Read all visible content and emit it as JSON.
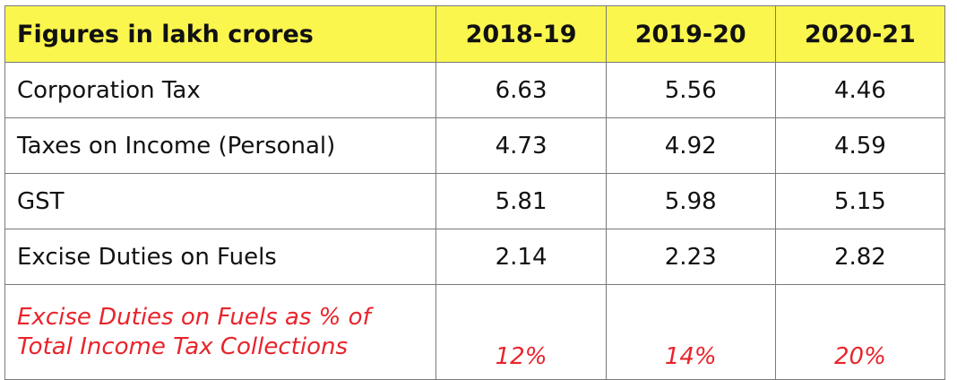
{
  "table": {
    "header": {
      "label": "Figures in lakh crores",
      "years": [
        "2018-19",
        "2019-20",
        "2020-21"
      ]
    },
    "rows": [
      {
        "label": "Corporation Tax",
        "values": [
          "6.63",
          "5.56",
          "4.46"
        ]
      },
      {
        "label": "Taxes on Income (Personal)",
        "values": [
          "4.73",
          "4.92",
          "4.59"
        ]
      },
      {
        "label": "GST",
        "values": [
          "5.81",
          "5.98",
          "5.15"
        ]
      },
      {
        "label": "Excise Duties on Fuels",
        "values": [
          "2.14",
          "2.23",
          "2.82"
        ]
      }
    ],
    "highlight_row": {
      "label_line1": "Excise Duties on Fuels as % of",
      "label_line2": "Total Income Tax Collections",
      "values": [
        "12%",
        "14%",
        "20%"
      ]
    }
  },
  "colors": {
    "header_background": "#fbf64e",
    "highlight_text": "#e8242b",
    "border": "#7a7a7a"
  }
}
